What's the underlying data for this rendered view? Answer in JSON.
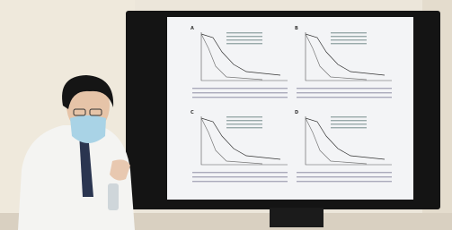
{
  "screen": {
    "panels": [
      {
        "label": "A"
      },
      {
        "label": "B"
      },
      {
        "label": "C"
      },
      {
        "label": "D"
      }
    ]
  }
}
